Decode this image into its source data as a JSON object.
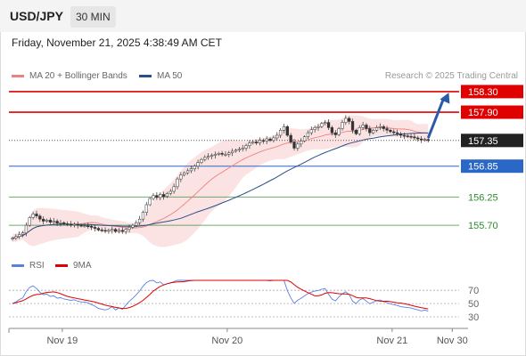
{
  "header": {
    "symbol": "USD/JPY",
    "timeframe": "30 MIN",
    "datetime": "Friday, November 21, 2025 4:38:49 AM CET"
  },
  "legend": {
    "items": [
      {
        "label": "MA 20 + Bollinger Bands",
        "color": "#f08080"
      },
      {
        "label": "MA 50",
        "color": "#2a4f8a"
      }
    ],
    "credit": "Research © 2025 Trading Central"
  },
  "rsi_legend": {
    "items": [
      {
        "label": "RSI",
        "color": "#5a80e0"
      },
      {
        "label": "9MA",
        "color": "#e00000"
      }
    ]
  },
  "chart_data": {
    "type": "candlestick",
    "ylim": [
      155.2,
      158.42
    ],
    "price_levels": [
      {
        "label": "158.30",
        "value": 158.3,
        "kind": "resistance",
        "color": "#e00000"
      },
      {
        "label": "157.90",
        "value": 157.9,
        "kind": "resistance",
        "color": "#e00000"
      },
      {
        "label": "157.35",
        "value": 157.35,
        "kind": "last",
        "color": "#222222"
      },
      {
        "label": "156.85",
        "value": 156.85,
        "kind": "pivot",
        "color": "#2a67c7"
      },
      {
        "label": "156.25",
        "value": 156.25,
        "kind": "support",
        "color": "#2e8b2e"
      },
      {
        "label": "155.70",
        "value": 155.7,
        "kind": "support",
        "color": "#2e8b2e"
      }
    ],
    "x_ticks": [
      "Nov 19",
      "Nov 20",
      "Nov 21",
      "Nov 30"
    ],
    "x_tick_index": [
      14.5,
      62.5,
      110.5,
      128
    ],
    "x_range": [
      0,
      130
    ],
    "close": [
      155.45,
      155.48,
      155.52,
      155.55,
      155.7,
      155.85,
      155.92,
      155.88,
      155.82,
      155.78,
      155.8,
      155.76,
      155.78,
      155.74,
      155.75,
      155.73,
      155.72,
      155.71,
      155.72,
      155.7,
      155.69,
      155.69,
      155.68,
      155.66,
      155.64,
      155.61,
      155.6,
      155.59,
      155.6,
      155.62,
      155.58,
      155.6,
      155.58,
      155.62,
      155.66,
      155.7,
      155.75,
      155.82,
      155.95,
      156.1,
      156.22,
      156.28,
      156.24,
      156.3,
      156.26,
      156.32,
      156.36,
      156.45,
      156.6,
      156.68,
      156.72,
      156.76,
      156.8,
      156.85,
      156.92,
      156.98,
      157.02,
      157.04,
      157.06,
      157.08,
      157.1,
      157.08,
      157.08,
      157.11,
      157.14,
      157.16,
      157.18,
      157.2,
      157.25,
      157.3,
      157.32,
      157.3,
      157.35,
      157.34,
      157.38,
      157.35,
      157.4,
      157.45,
      157.55,
      157.62,
      157.45,
      157.32,
      157.2,
      157.28,
      157.34,
      157.42,
      157.5,
      157.56,
      157.6,
      157.62,
      157.68,
      157.7,
      157.6,
      157.5,
      157.46,
      157.58,
      157.7,
      157.78,
      157.72,
      157.55,
      157.48,
      157.6,
      157.65,
      157.58,
      157.5,
      157.55,
      157.6,
      157.62,
      157.58,
      157.55,
      157.52,
      157.5,
      157.48,
      157.45,
      157.44,
      157.43,
      157.42,
      157.4,
      157.38,
      157.36,
      157.37,
      157.35
    ],
    "forecast_arrow": {
      "from_index": 121,
      "from_value": 157.4,
      "to_index": 127,
      "to_value": 158.28
    },
    "rsi": {
      "ylim": [
        22,
        85
      ],
      "levels": [
        70,
        50,
        30
      ],
      "level_labels": [
        "70",
        "50",
        "30"
      ]
    }
  }
}
